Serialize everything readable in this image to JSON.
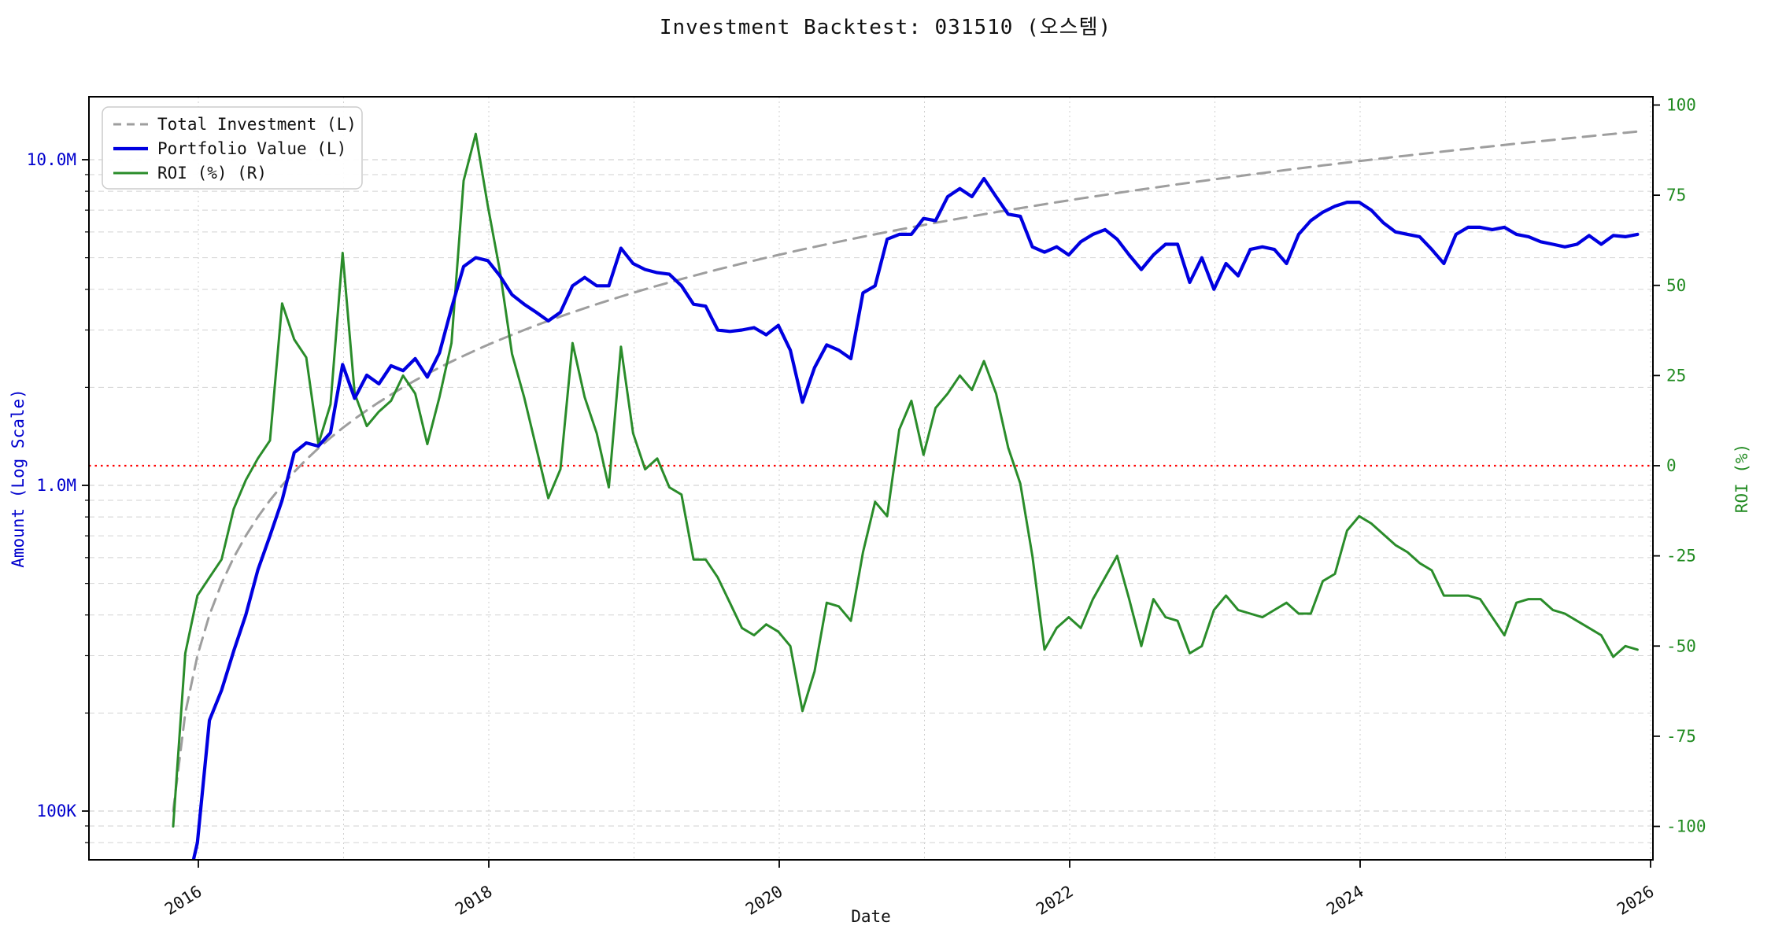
{
  "title": "Investment Backtest: 031510 (오스템)",
  "colors": {
    "investment_line": "#9e9e9e",
    "portfolio_line": "#0000e0",
    "roi_line": "#2a8c2a",
    "zero_roi_line": "#ff0000",
    "left_axis_text": "#0000cd",
    "right_axis_text": "#228B22",
    "x_axis_text": "#111111",
    "grid_major": "#c8c8c8",
    "grid_vertical": "#cfcfcf",
    "frame": "#000000",
    "legend_border": "#cccccc"
  },
  "legend": {
    "items": [
      {
        "label": "Total Investment (L)",
        "series": "investment",
        "style": "dashed",
        "color": "#9e9e9e"
      },
      {
        "label": "Portfolio Value (L)",
        "series": "portfolio",
        "style": "solid",
        "color": "#0000e0"
      },
      {
        "label": "ROI (%) (R)",
        "series": "roi",
        "style": "solid",
        "color": "#2a8c2a"
      }
    ]
  },
  "axes": {
    "left": {
      "label": "Amount (Log Scale)",
      "scale": "log",
      "major_ticks": [
        {
          "value": 100000,
          "label": "100K"
        },
        {
          "value": 1000000,
          "label": "1.0M"
        },
        {
          "value": 10000000,
          "label": "10.0M"
        }
      ]
    },
    "right": {
      "label": "ROI (%)",
      "scale": "linear",
      "ticks": [
        -100,
        -75,
        -50,
        -25,
        0,
        25,
        50,
        75,
        100
      ]
    },
    "x": {
      "label": "Date",
      "year_ticks": [
        2016,
        2018,
        2020,
        2022,
        2024,
        2026
      ]
    }
  },
  "chart_data": {
    "type": "line",
    "title": "Investment Backtest: 031510 (오스템)",
    "x_start_month": "2015-11",
    "x_frequency": "monthly",
    "n_points": 122,
    "xlabel": "Date",
    "ylabel_left": "Amount (Log Scale)",
    "ylabel_right": "ROI (%)",
    "left_axis_range": [
      70000,
      15600000
    ],
    "right_axis_range": [
      -109.3,
      102.3
    ],
    "x_axis_range_years": [
      2015.25,
      2026.02
    ],
    "grid": true,
    "legend_position": "top-left",
    "zero_roi_reference": 0,
    "monthly_contribution": 100000,
    "series": [
      {
        "name": "Total Investment (L)",
        "axis": "left",
        "unit": "KRW millions",
        "values": [
          0.1,
          0.2,
          0.3,
          0.4,
          0.5,
          0.6,
          0.7,
          0.8,
          0.9,
          1.0,
          1.1,
          1.2,
          1.3,
          1.4,
          1.5,
          1.6,
          1.7,
          1.8,
          1.9,
          2.0,
          2.1,
          2.2,
          2.3,
          2.4,
          2.5,
          2.6,
          2.7,
          2.8,
          2.9,
          3.0,
          3.1,
          3.2,
          3.3,
          3.4,
          3.5,
          3.6,
          3.7,
          3.8,
          3.9,
          4.0,
          4.1,
          4.2,
          4.3,
          4.4,
          4.5,
          4.6,
          4.7,
          4.8,
          4.9,
          5.0,
          5.1,
          5.2,
          5.3,
          5.4,
          5.5,
          5.6,
          5.7,
          5.8,
          5.9,
          6.0,
          6.1,
          6.2,
          6.3,
          6.4,
          6.5,
          6.6,
          6.7,
          6.8,
          6.9,
          7.0,
          7.1,
          7.2,
          7.3,
          7.4,
          7.5,
          7.6,
          7.7,
          7.8,
          7.9,
          8.0,
          8.1,
          8.2,
          8.3,
          8.4,
          8.5,
          8.6,
          8.7,
          8.8,
          8.9,
          9.0,
          9.1,
          9.2,
          9.3,
          9.4,
          9.5,
          9.6,
          9.7,
          9.8,
          9.9,
          10.0,
          10.1,
          10.2,
          10.3,
          10.4,
          10.5,
          10.6,
          10.7,
          10.8,
          10.9,
          11.0,
          11.1,
          11.2,
          11.3,
          11.4,
          11.5,
          11.6,
          11.7,
          11.8,
          11.9,
          12.0,
          12.1,
          12.2
        ]
      },
      {
        "name": "Portfolio Value (L)",
        "axis": "left",
        "unit": "KRW millions",
        "values": [
          0.04,
          0.055,
          0.08,
          0.19,
          0.235,
          0.31,
          0.4,
          0.55,
          0.7,
          0.9,
          1.26,
          1.35,
          1.32,
          1.45,
          2.35,
          1.85,
          2.18,
          2.05,
          2.33,
          2.25,
          2.45,
          2.15,
          2.55,
          3.5,
          4.7,
          5.0,
          4.9,
          4.4,
          3.85,
          3.6,
          3.4,
          3.2,
          3.4,
          4.1,
          4.35,
          4.1,
          4.1,
          5.35,
          4.8,
          4.6,
          4.5,
          4.45,
          4.1,
          3.6,
          3.55,
          3.0,
          2.97,
          3.0,
          3.05,
          2.9,
          3.1,
          2.6,
          1.8,
          2.3,
          2.7,
          2.6,
          2.45,
          3.9,
          4.1,
          5.7,
          5.9,
          5.9,
          6.6,
          6.5,
          7.7,
          8.15,
          7.7,
          8.75,
          7.7,
          6.8,
          6.7,
          5.4,
          5.2,
          5.4,
          5.1,
          5.6,
          5.9,
          6.1,
          5.7,
          5.1,
          4.6,
          5.1,
          5.5,
          5.5,
          4.2,
          5.0,
          4.0,
          4.8,
          4.4,
          5.3,
          5.4,
          5.3,
          4.8,
          5.9,
          6.5,
          6.9,
          7.2,
          7.4,
          7.4,
          7.0,
          6.4,
          6.0,
          5.9,
          5.8,
          5.3,
          4.8,
          5.9,
          6.2,
          6.2,
          6.1,
          6.2,
          5.9,
          5.8,
          5.6,
          5.5,
          5.4,
          5.5,
          5.85,
          5.5,
          5.85,
          5.8,
          5.9
        ]
      },
      {
        "name": "ROI (%) (R)",
        "axis": "right",
        "unit": "percent",
        "values": [
          -100,
          -52,
          -36,
          -31,
          -26,
          -12,
          -4,
          2,
          7,
          45,
          35,
          30,
          6,
          17,
          59,
          20,
          11,
          15,
          18,
          25,
          20,
          6,
          19,
          34,
          79,
          92,
          72,
          54,
          31,
          19,
          5,
          -9,
          -1,
          34,
          19,
          9,
          -6,
          33,
          9,
          -1,
          2,
          -6,
          -8,
          -26,
          -26,
          -31,
          -38,
          -45,
          -47,
          -44,
          -46,
          -50,
          -68,
          -57,
          -38,
          -39,
          -43,
          -24,
          -10,
          -14,
          10,
          18,
          3,
          16,
          20,
          25,
          21,
          29,
          20,
          5,
          -5,
          -25,
          -51,
          -45,
          -42,
          -45,
          -37,
          -31,
          -25,
          -37,
          -50,
          -37,
          -42,
          -43,
          -52,
          -50,
          -40,
          -36,
          -40,
          -41,
          -42,
          -40,
          -38,
          -41,
          -41,
          -32,
          -30,
          -18,
          -14,
          -16,
          -19,
          -22,
          -24,
          -27,
          -29,
          -36,
          -36,
          -36,
          -37,
          -42,
          -47,
          -38,
          -37,
          -37,
          -40,
          -41,
          -43,
          -45,
          -47,
          -53,
          -50,
          -51
        ]
      }
    ]
  }
}
